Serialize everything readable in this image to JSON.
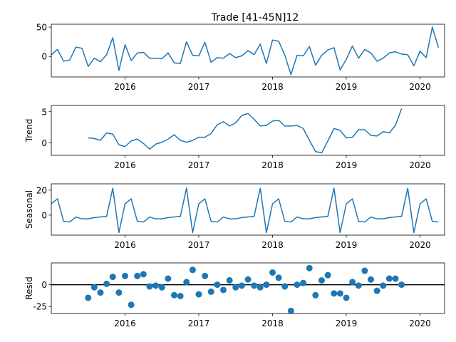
{
  "chart_data": {
    "type": "line",
    "title": "Trade  [41-45N]12",
    "x_start": "2015-01",
    "x_end": "2020-05",
    "x_ticks": [
      "2016",
      "2017",
      "2018",
      "2019",
      "2020"
    ],
    "panels": [
      {
        "name": "observed",
        "ylabel": "",
        "kind": "line",
        "ylim": [
          -35,
          55
        ],
        "yticks": [
          50,
          0
        ],
        "x_start": "2015-01",
        "values": [
          3,
          12,
          -8,
          -6,
          16,
          14,
          -17,
          -3,
          -9,
          3,
          32,
          -24,
          20,
          -7,
          6,
          7,
          -3,
          -3,
          -4,
          6,
          -11,
          -12,
          25,
          2,
          1,
          24,
          -10,
          -2,
          -3,
          5,
          -2,
          1,
          10,
          3,
          21,
          -12,
          28,
          26,
          2,
          -31,
          2,
          1,
          17,
          -15,
          2,
          11,
          15,
          -23,
          -5,
          18,
          -3,
          12,
          6,
          -8,
          -3,
          6,
          8,
          4,
          3,
          -16,
          9,
          -2,
          50,
          15
        ]
      },
      {
        "name": "trend",
        "ylabel": "Trend",
        "kind": "line",
        "ylim": [
          -2,
          6
        ],
        "yticks": [
          5,
          0
        ],
        "x_start": "2015-07",
        "values": [
          0.8,
          0.7,
          0.4,
          1.6,
          1.4,
          -0.3,
          -0.6,
          0.3,
          0.6,
          -0.1,
          -1.0,
          -0.2,
          0.1,
          0.6,
          1.3,
          0.4,
          0.1,
          0.4,
          0.9,
          0.9,
          1.5,
          2.9,
          3.4,
          2.7,
          3.2,
          4.4,
          4.7,
          3.8,
          2.7,
          2.8,
          3.5,
          3.6,
          2.7,
          2.7,
          2.8,
          2.3,
          0.4,
          -1.4,
          -1.6,
          0.3,
          2.3,
          2.0,
          0.8,
          0.9,
          2.1,
          2.1,
          1.2,
          1.1,
          1.8,
          1.6,
          2.8,
          5.5
        ]
      },
      {
        "name": "seasonal",
        "ylabel": "Seasonal",
        "kind": "line",
        "ylim": [
          -16,
          25
        ],
        "yticks": [
          20,
          0
        ],
        "x_start": "2015-01",
        "values": [
          9,
          13,
          -5,
          -5.5,
          -1.5,
          -3,
          -3,
          -2,
          -1.5,
          -1,
          21.5,
          -14,
          9,
          13,
          -5,
          -5.5,
          -1.5,
          -3,
          -3,
          -2,
          -1.5,
          -1,
          21.5,
          -14,
          9,
          13,
          -5,
          -5.5,
          -1.5,
          -3,
          -3,
          -2,
          -1.5,
          -1,
          21.5,
          -14,
          9,
          13,
          -5,
          -5.5,
          -1.5,
          -3,
          -3,
          -2,
          -1.5,
          -1,
          21.5,
          -14,
          9,
          13,
          -5,
          -5.5,
          -1.5,
          -3,
          -3,
          -2,
          -1.5,
          -1,
          21.5,
          -14,
          9,
          13,
          -5,
          -5.5
        ]
      },
      {
        "name": "resid",
        "ylabel": "Resid",
        "kind": "scatter",
        "ylim": [
          -33,
          25
        ],
        "yticks": [
          0,
          -25
        ],
        "x_start": "2015-07",
        "values": [
          -15,
          -3,
          -9,
          1,
          9,
          -9,
          10,
          -23,
          10,
          12,
          -2,
          -1,
          -3,
          7,
          -12,
          -13,
          3,
          17,
          -11,
          10,
          -8,
          0,
          -6,
          5,
          -3,
          -1,
          6,
          -1,
          -3,
          0,
          14,
          8,
          -2,
          -30,
          0,
          2,
          19,
          -12,
          5,
          11,
          -10,
          -10,
          -15,
          3,
          -1,
          16,
          6,
          -7,
          -1,
          7,
          7,
          0
        ]
      }
    ]
  }
}
